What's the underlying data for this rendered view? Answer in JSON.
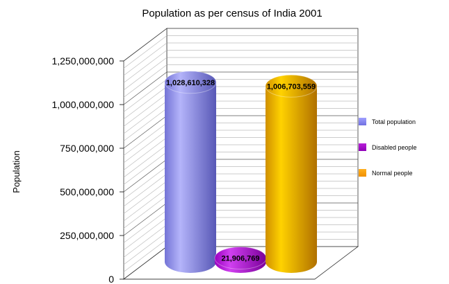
{
  "chart_data": {
    "type": "bar",
    "style": "3d-cylinder",
    "title": "Population as per census of India 2001",
    "xlabel": "",
    "ylabel": "Population",
    "ylim": [
      0,
      1250000000
    ],
    "yticks": [
      0,
      250000000,
      500000000,
      750000000,
      1000000000,
      1250000000
    ],
    "ytick_labels": [
      "0",
      "250,000,000",
      "500,000,000",
      "750,000,000",
      "1,000,000,000",
      "1,250,000,000"
    ],
    "grid": true,
    "legend_position": "right",
    "series": [
      {
        "name": "Total population",
        "value": 1028610328,
        "label": "1,028,610,328",
        "color": "#8080f0"
      },
      {
        "name": "Disabled people",
        "value": 21906769,
        "label": "21,906,769",
        "color": "#a000c8"
      },
      {
        "name": "Normal people",
        "value": 1006703559,
        "label": "1,006,703,559",
        "color": "#ffa000"
      }
    ]
  }
}
